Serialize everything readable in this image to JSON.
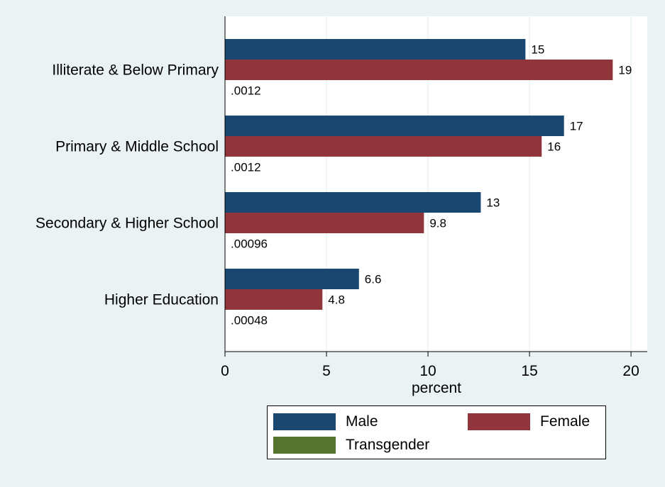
{
  "chart_data": {
    "type": "bar",
    "orientation": "horizontal",
    "categories": [
      "Illiterate & Below Primary",
      "Primary & Middle School",
      "Secondary & Higher School",
      "Higher Education"
    ],
    "series": [
      {
        "name": "Male",
        "color": "#1a476f",
        "values": [
          14.8,
          16.7,
          12.6,
          6.6
        ],
        "labels": [
          "15",
          "17",
          "13",
          "6.6"
        ]
      },
      {
        "name": "Female",
        "color": "#90353b",
        "values": [
          19.1,
          15.6,
          9.8,
          4.8
        ],
        "labels": [
          "19",
          "16",
          "9.8",
          "4.8"
        ]
      },
      {
        "name": "Transgender",
        "color": "#55752f",
        "values": [
          0.0012,
          0.0012,
          0.00096,
          0.00048
        ],
        "labels": [
          ".0012",
          ".0012",
          ".00096",
          ".00048"
        ]
      }
    ],
    "xlabel": "percent",
    "xlim": [
      0,
      20.8
    ],
    "xticks": [
      "0",
      "5",
      "10",
      "15",
      "20"
    ],
    "xtick_values": [
      0,
      5,
      10,
      15,
      20
    ],
    "grid": true,
    "legend_position": "bottom",
    "background_color": "#eaf2f3",
    "plot_background_color": "#ffffff",
    "grid_color": "#eaf2f3"
  }
}
